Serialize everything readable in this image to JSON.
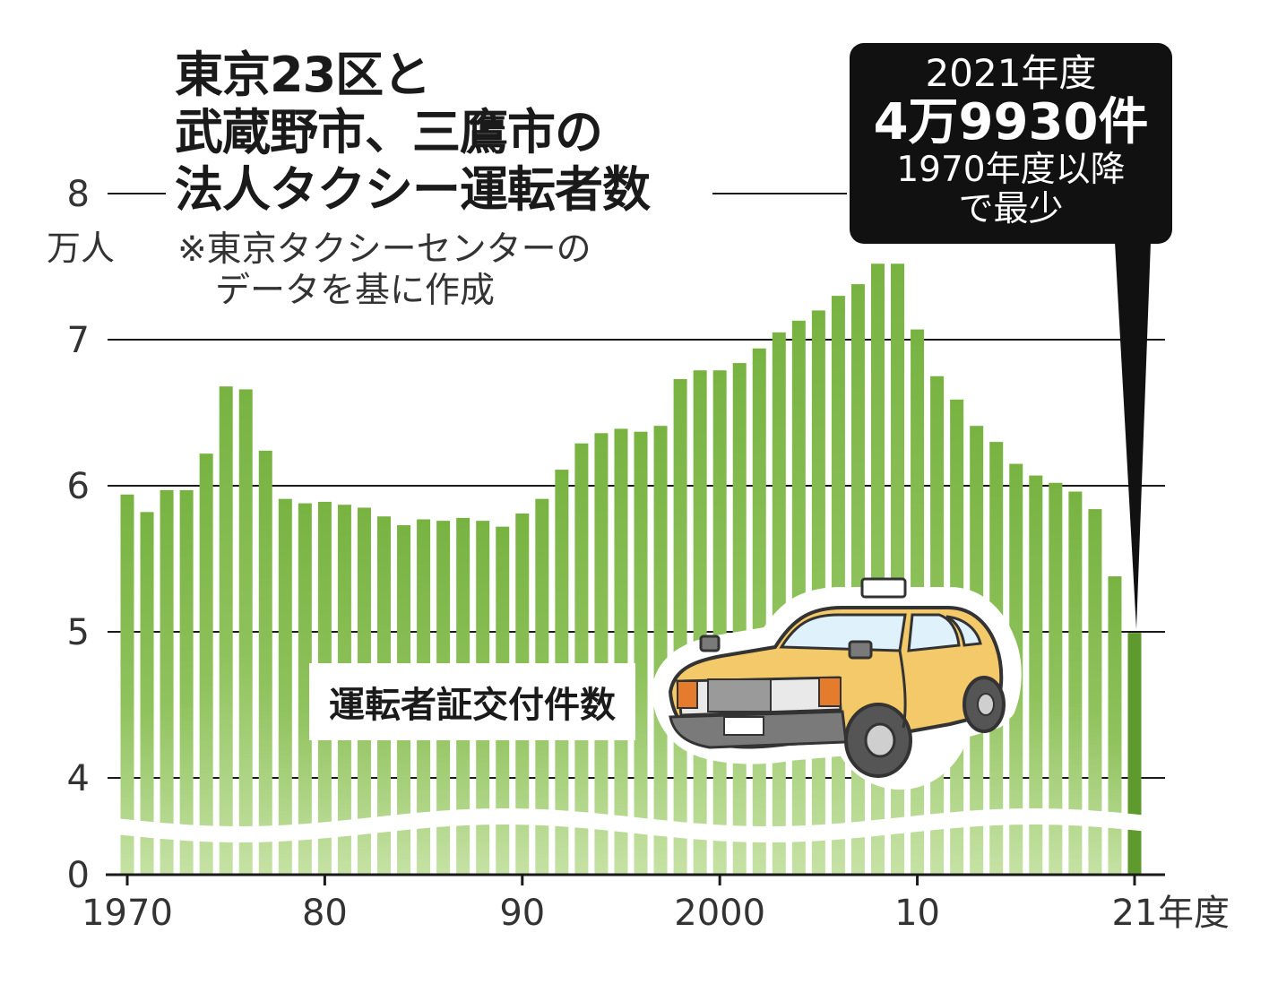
{
  "chart_data": {
    "type": "bar",
    "title_lines": [
      "東京23区と",
      "武蔵野市、三鷹市の",
      "法人タクシー運転者数"
    ],
    "note_lines": [
      "※東京タクシーセンターの",
      "データを基に作成"
    ],
    "y_unit": "万人",
    "x_unit": "年度",
    "legend": "運転者証交付件数",
    "callout": {
      "line1": "2021年度",
      "line2": "4万9930件",
      "line3": "1970年度以降",
      "line4": "で最少"
    },
    "y_ticks": [
      "0",
      "4",
      "5",
      "6",
      "7",
      "8"
    ],
    "y_axis_break": "4と0の間を省略",
    "x_tick_labels": [
      {
        "year": 1970,
        "label": "1970"
      },
      {
        "year": 1980,
        "label": "80"
      },
      {
        "year": 1990,
        "label": "90"
      },
      {
        "year": 2000,
        "label": "2000"
      },
      {
        "year": 2010,
        "label": "10"
      },
      {
        "year": 2021,
        "label": "21"
      }
    ],
    "ylim": [
      4,
      8
    ],
    "years": [
      1970,
      1971,
      1972,
      1973,
      1974,
      1975,
      1976,
      1977,
      1978,
      1979,
      1980,
      1981,
      1982,
      1983,
      1984,
      1985,
      1986,
      1987,
      1988,
      1989,
      1990,
      1991,
      1992,
      1993,
      1994,
      1995,
      1996,
      1997,
      1998,
      1999,
      2000,
      2001,
      2002,
      2003,
      2004,
      2005,
      2006,
      2007,
      2008,
      2009,
      2010,
      2011,
      2012,
      2013,
      2014,
      2015,
      2016,
      2017,
      2018,
      2019,
      2020,
      2021
    ],
    "values": [
      5.94,
      5.82,
      5.97,
      5.97,
      6.22,
      6.68,
      6.66,
      6.24,
      5.91,
      5.88,
      5.89,
      5.87,
      5.85,
      5.79,
      5.73,
      5.77,
      5.76,
      5.78,
      5.76,
      5.72,
      5.81,
      5.91,
      6.11,
      6.29,
      6.36,
      6.39,
      6.37,
      6.41,
      6.73,
      6.79,
      6.79,
      6.84,
      6.94,
      7.05,
      7.13,
      7.2,
      7.3,
      7.38,
      7.52,
      7.52,
      7.07,
      6.75,
      6.59,
      6.41,
      6.3,
      6.15,
      6.07,
      6.02,
      5.96,
      5.84,
      5.38,
      4.993
    ],
    "colors": {
      "bar": "#7db84a",
      "bar_light": "#c2df9f",
      "last_bar": "#5f9a2f",
      "grid": "#1a1a1a",
      "callout_bg": "#111111",
      "taxi_body": "#f4c96a"
    }
  }
}
